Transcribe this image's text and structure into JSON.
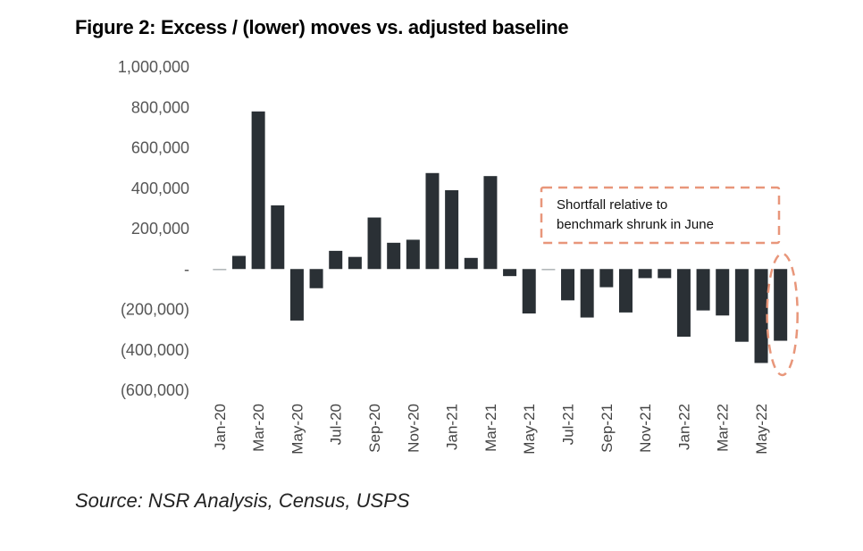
{
  "chart_data": {
    "type": "bar",
    "title": "Figure 2: Excess / (lower) moves vs. adjusted baseline",
    "source": "Source: NSR Analysis, Census, USPS",
    "ylim": [
      -600000,
      1000000
    ],
    "y_ticks": [
      1000000,
      800000,
      600000,
      400000,
      200000,
      0,
      -200000,
      -400000,
      -600000
    ],
    "y_tick_labels": [
      "1,000,000",
      "800,000",
      "600,000",
      "400,000",
      "200,000",
      "-",
      "(200,000)",
      "(400,000)",
      "(600,000)"
    ],
    "categories": [
      "Jan-20",
      "Feb-20",
      "Mar-20",
      "Apr-20",
      "May-20",
      "Jun-20",
      "Jul-20",
      "Aug-20",
      "Sep-20",
      "Oct-20",
      "Nov-20",
      "Dec-20",
      "Jan-21",
      "Feb-21",
      "Mar-21",
      "Apr-21",
      "May-21",
      "Jun-21",
      "Jul-21",
      "Aug-21",
      "Sep-21",
      "Oct-21",
      "Nov-21",
      "Dec-21",
      "Jan-22",
      "Feb-22",
      "Mar-22",
      "Apr-22",
      "May-22",
      "Jun-22"
    ],
    "x_tick_labels": [
      "Jan-20",
      "Mar-20",
      "May-20",
      "Jul-20",
      "Sep-20",
      "Nov-20",
      "Jan-21",
      "Mar-21",
      "May-21",
      "Jul-21",
      "Sep-21",
      "Nov-21",
      "Jan-22",
      "Mar-22",
      "May-22"
    ],
    "values": [
      -5000,
      65000,
      780000,
      315000,
      -255000,
      -95000,
      90000,
      60000,
      255000,
      130000,
      145000,
      475000,
      390000,
      55000,
      460000,
      -35000,
      -220000,
      -5000,
      -155000,
      -240000,
      -90000,
      -215000,
      -45000,
      -45000,
      -335000,
      -205000,
      -230000,
      -360000,
      -465000,
      -355000
    ],
    "bar_color": "#2a3035",
    "grid": false,
    "annotation": {
      "lines": [
        "Shortfall relative to",
        "benchmark shrunk in June"
      ],
      "color": "#e8967a"
    }
  }
}
